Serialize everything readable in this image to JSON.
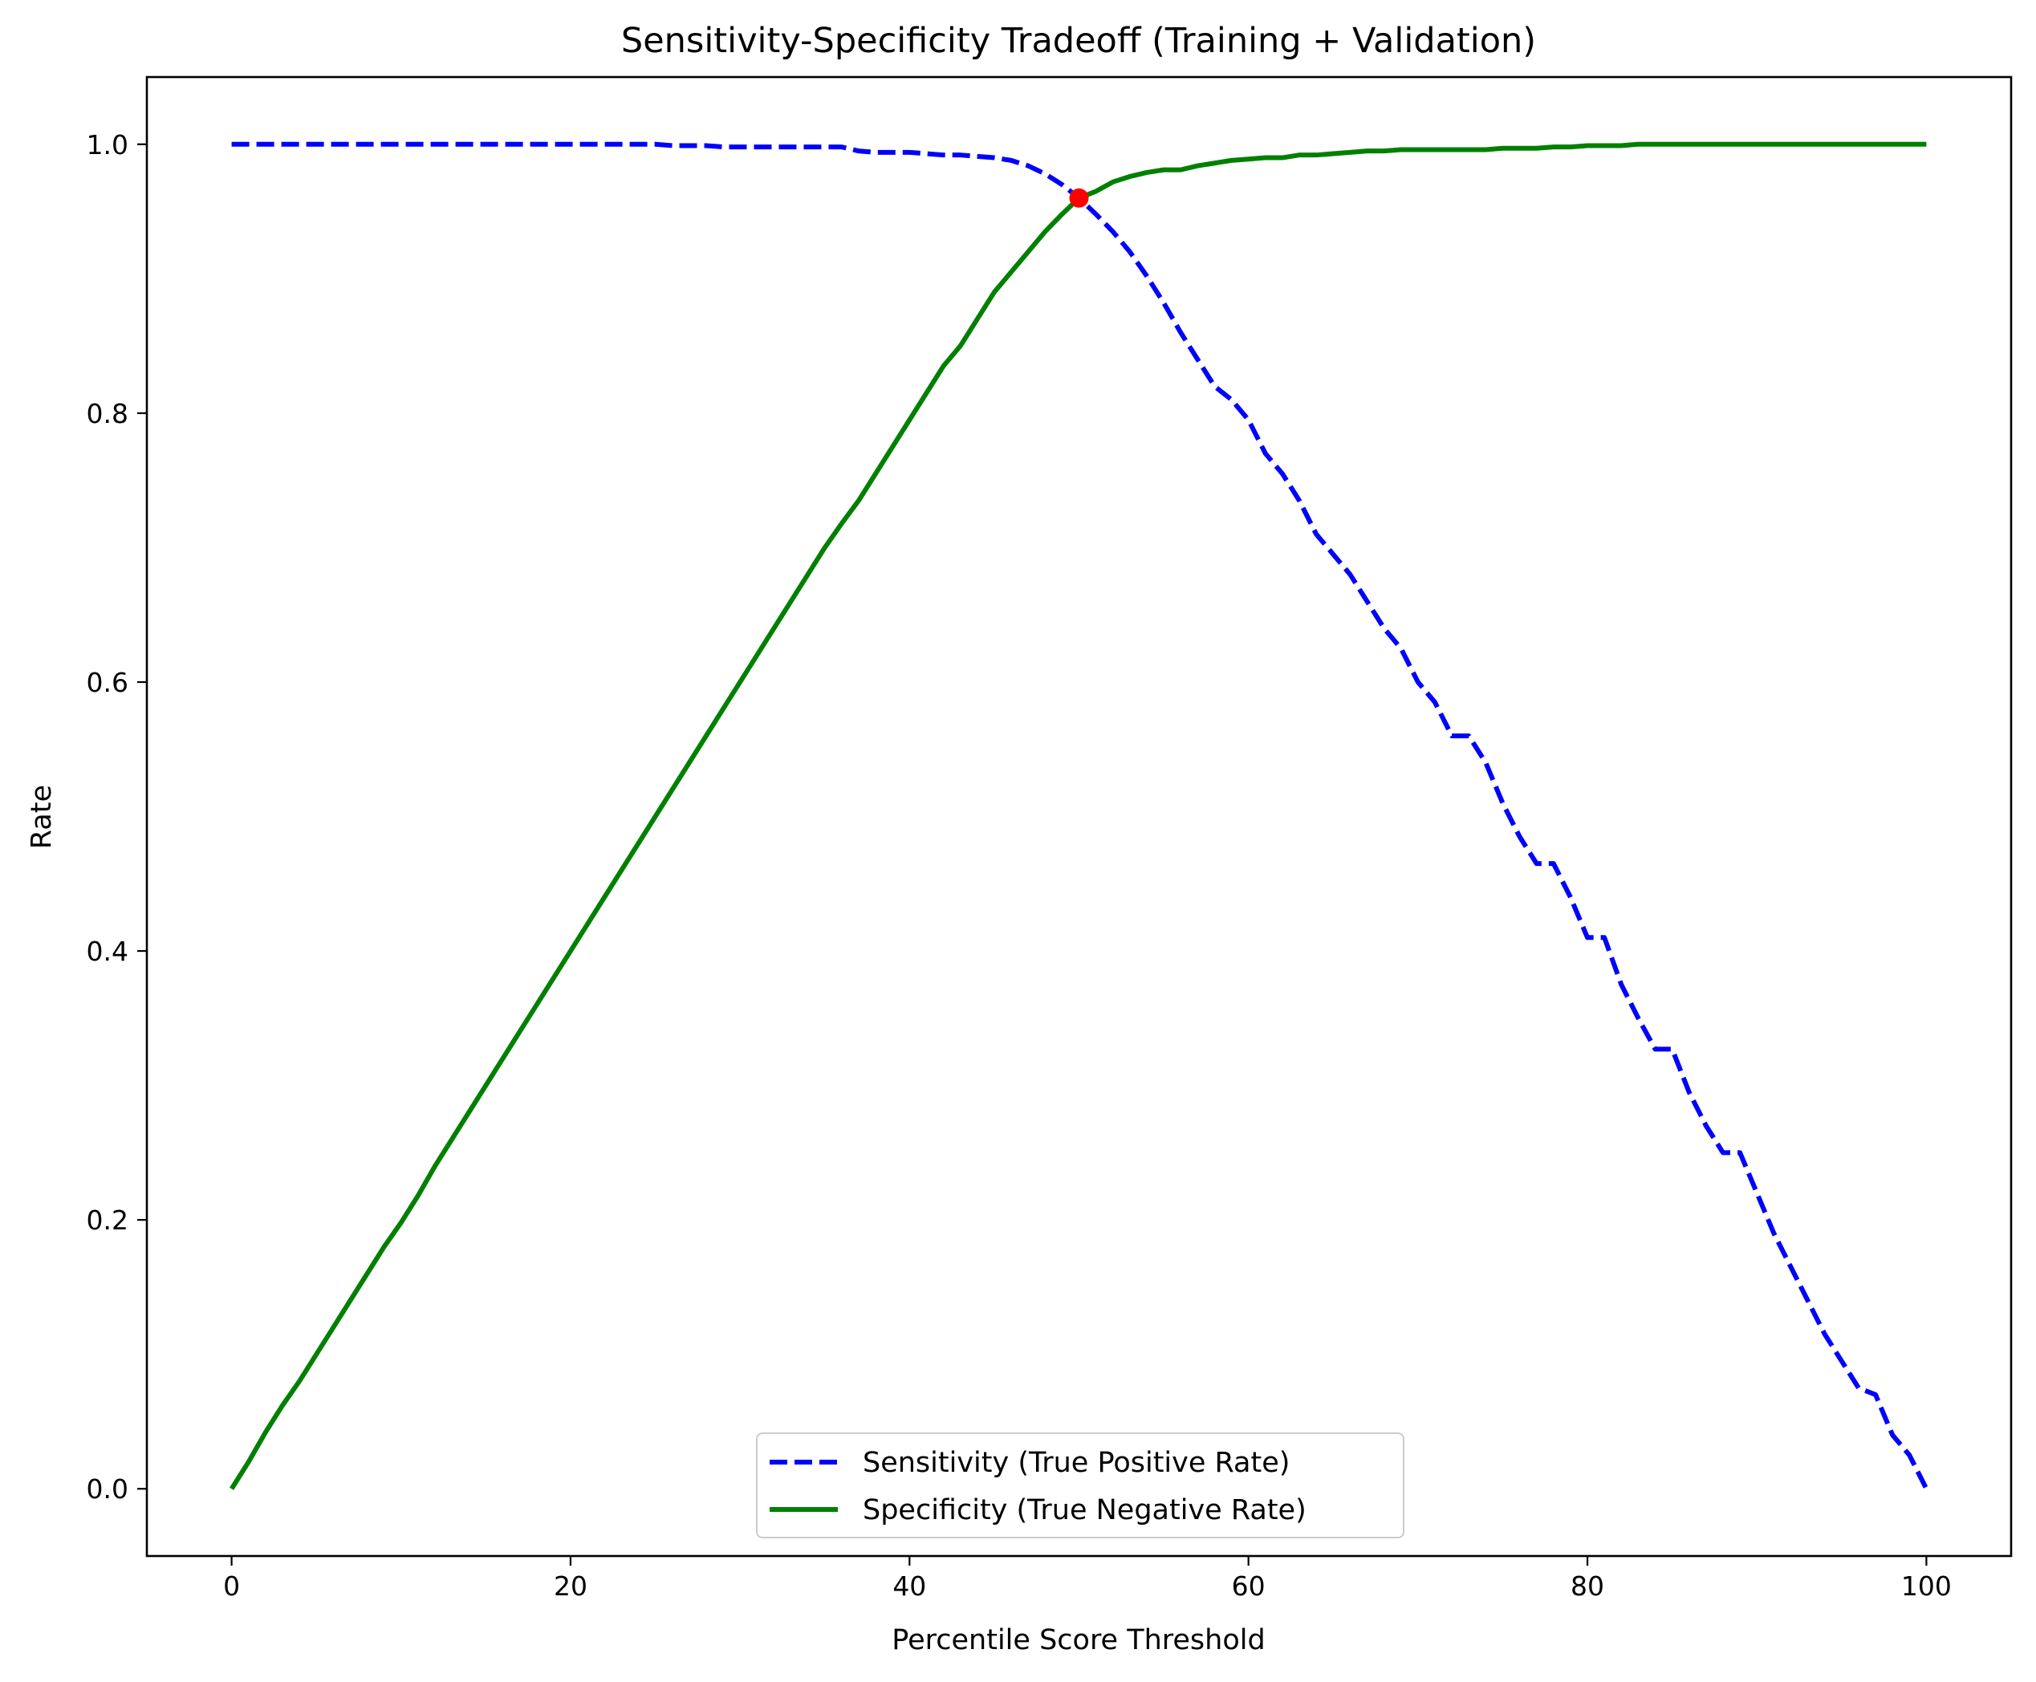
{
  "chart_data": {
    "type": "line",
    "title": "Sensitivity-Specificity Tradeoff (Training + Validation)",
    "xlabel": "Percentile Score Threshold",
    "ylabel": "Rate",
    "xlim": [
      -5,
      105
    ],
    "ylim": [
      -0.05,
      1.05
    ],
    "x_ticks": [
      0,
      20,
      40,
      60,
      80,
      100
    ],
    "x_tick_labels": [
      "0",
      "20",
      "40",
      "60",
      "80",
      "100"
    ],
    "y_ticks": [
      0.0,
      0.2,
      0.4,
      0.6,
      0.8,
      1.0
    ],
    "y_tick_labels": [
      "0.0",
      "0.2",
      "0.4",
      "0.6",
      "0.8",
      "1.0"
    ],
    "grid": false,
    "legend_position": "bottom-center",
    "x": [
      0,
      1,
      2,
      3,
      4,
      5,
      6,
      7,
      8,
      9,
      10,
      11,
      12,
      13,
      14,
      15,
      16,
      17,
      18,
      19,
      20,
      21,
      22,
      23,
      24,
      25,
      26,
      27,
      28,
      29,
      30,
      31,
      32,
      33,
      34,
      35,
      36,
      37,
      38,
      39,
      40,
      41,
      42,
      43,
      44,
      45,
      46,
      47,
      48,
      49,
      50,
      51,
      52,
      53,
      54,
      55,
      56,
      57,
      58,
      59,
      60,
      61,
      62,
      63,
      64,
      65,
      66,
      67,
      68,
      69,
      70,
      71,
      72,
      73,
      74,
      75,
      76,
      77,
      78,
      79,
      80,
      81,
      82,
      83,
      84,
      85,
      86,
      87,
      88,
      89,
      90,
      91,
      92,
      93,
      94,
      95,
      96,
      97,
      98,
      99,
      100
    ],
    "series": [
      {
        "name": "Sensitivity (True Positive Rate)",
        "color": "#0000ff",
        "style": "dashed",
        "values": [
          1.0,
          1.0,
          1.0,
          1.0,
          1.0,
          1.0,
          1.0,
          1.0,
          1.0,
          1.0,
          1.0,
          1.0,
          1.0,
          1.0,
          1.0,
          1.0,
          1.0,
          1.0,
          1.0,
          1.0,
          1.0,
          1.0,
          1.0,
          1.0,
          1.0,
          1.0,
          0.999,
          0.999,
          0.999,
          0.998,
          0.998,
          0.998,
          0.998,
          0.998,
          0.998,
          0.998,
          0.998,
          0.995,
          0.994,
          0.994,
          0.994,
          0.993,
          0.992,
          0.992,
          0.991,
          0.99,
          0.988,
          0.984,
          0.978,
          0.97,
          0.96,
          0.948,
          0.935,
          0.92,
          0.902,
          0.882,
          0.86,
          0.84,
          0.82,
          0.81,
          0.795,
          0.77,
          0.755,
          0.735,
          0.71,
          0.695,
          0.68,
          0.66,
          0.64,
          0.625,
          0.6,
          0.585,
          0.56,
          0.56,
          0.54,
          0.51,
          0.485,
          0.465,
          0.465,
          0.44,
          0.41,
          0.41,
          0.375,
          0.35,
          0.327,
          0.327,
          0.295,
          0.27,
          0.25,
          0.25,
          0.22,
          0.19,
          0.165,
          0.14,
          0.115,
          0.095,
          0.075,
          0.07,
          0.04,
          0.025,
          0.0
        ]
      },
      {
        "name": "Specificity (True Negative Rate)",
        "color": "#008000",
        "style": "solid",
        "values": [
          0.0,
          0.02,
          0.042,
          0.062,
          0.08,
          0.1,
          0.12,
          0.14,
          0.16,
          0.18,
          0.198,
          0.218,
          0.24,
          0.26,
          0.28,
          0.3,
          0.32,
          0.34,
          0.36,
          0.38,
          0.4,
          0.42,
          0.44,
          0.46,
          0.48,
          0.5,
          0.52,
          0.54,
          0.56,
          0.58,
          0.6,
          0.62,
          0.64,
          0.66,
          0.68,
          0.7,
          0.718,
          0.735,
          0.755,
          0.775,
          0.795,
          0.815,
          0.835,
          0.85,
          0.87,
          0.89,
          0.905,
          0.92,
          0.935,
          0.948,
          0.96,
          0.965,
          0.972,
          0.976,
          0.979,
          0.981,
          0.981,
          0.984,
          0.986,
          0.988,
          0.989,
          0.99,
          0.99,
          0.992,
          0.992,
          0.993,
          0.994,
          0.995,
          0.995,
          0.996,
          0.996,
          0.996,
          0.996,
          0.996,
          0.996,
          0.997,
          0.997,
          0.997,
          0.998,
          0.998,
          0.999,
          0.999,
          0.999,
          1.0,
          1.0,
          1.0,
          1.0,
          1.0,
          1.0,
          1.0,
          1.0,
          1.0,
          1.0,
          1.0,
          1.0,
          1.0,
          1.0,
          1.0,
          1.0,
          1.0,
          1.0
        ]
      }
    ],
    "intersection": {
      "x": 50,
      "y": 0.96,
      "color": "#ff0000"
    }
  }
}
